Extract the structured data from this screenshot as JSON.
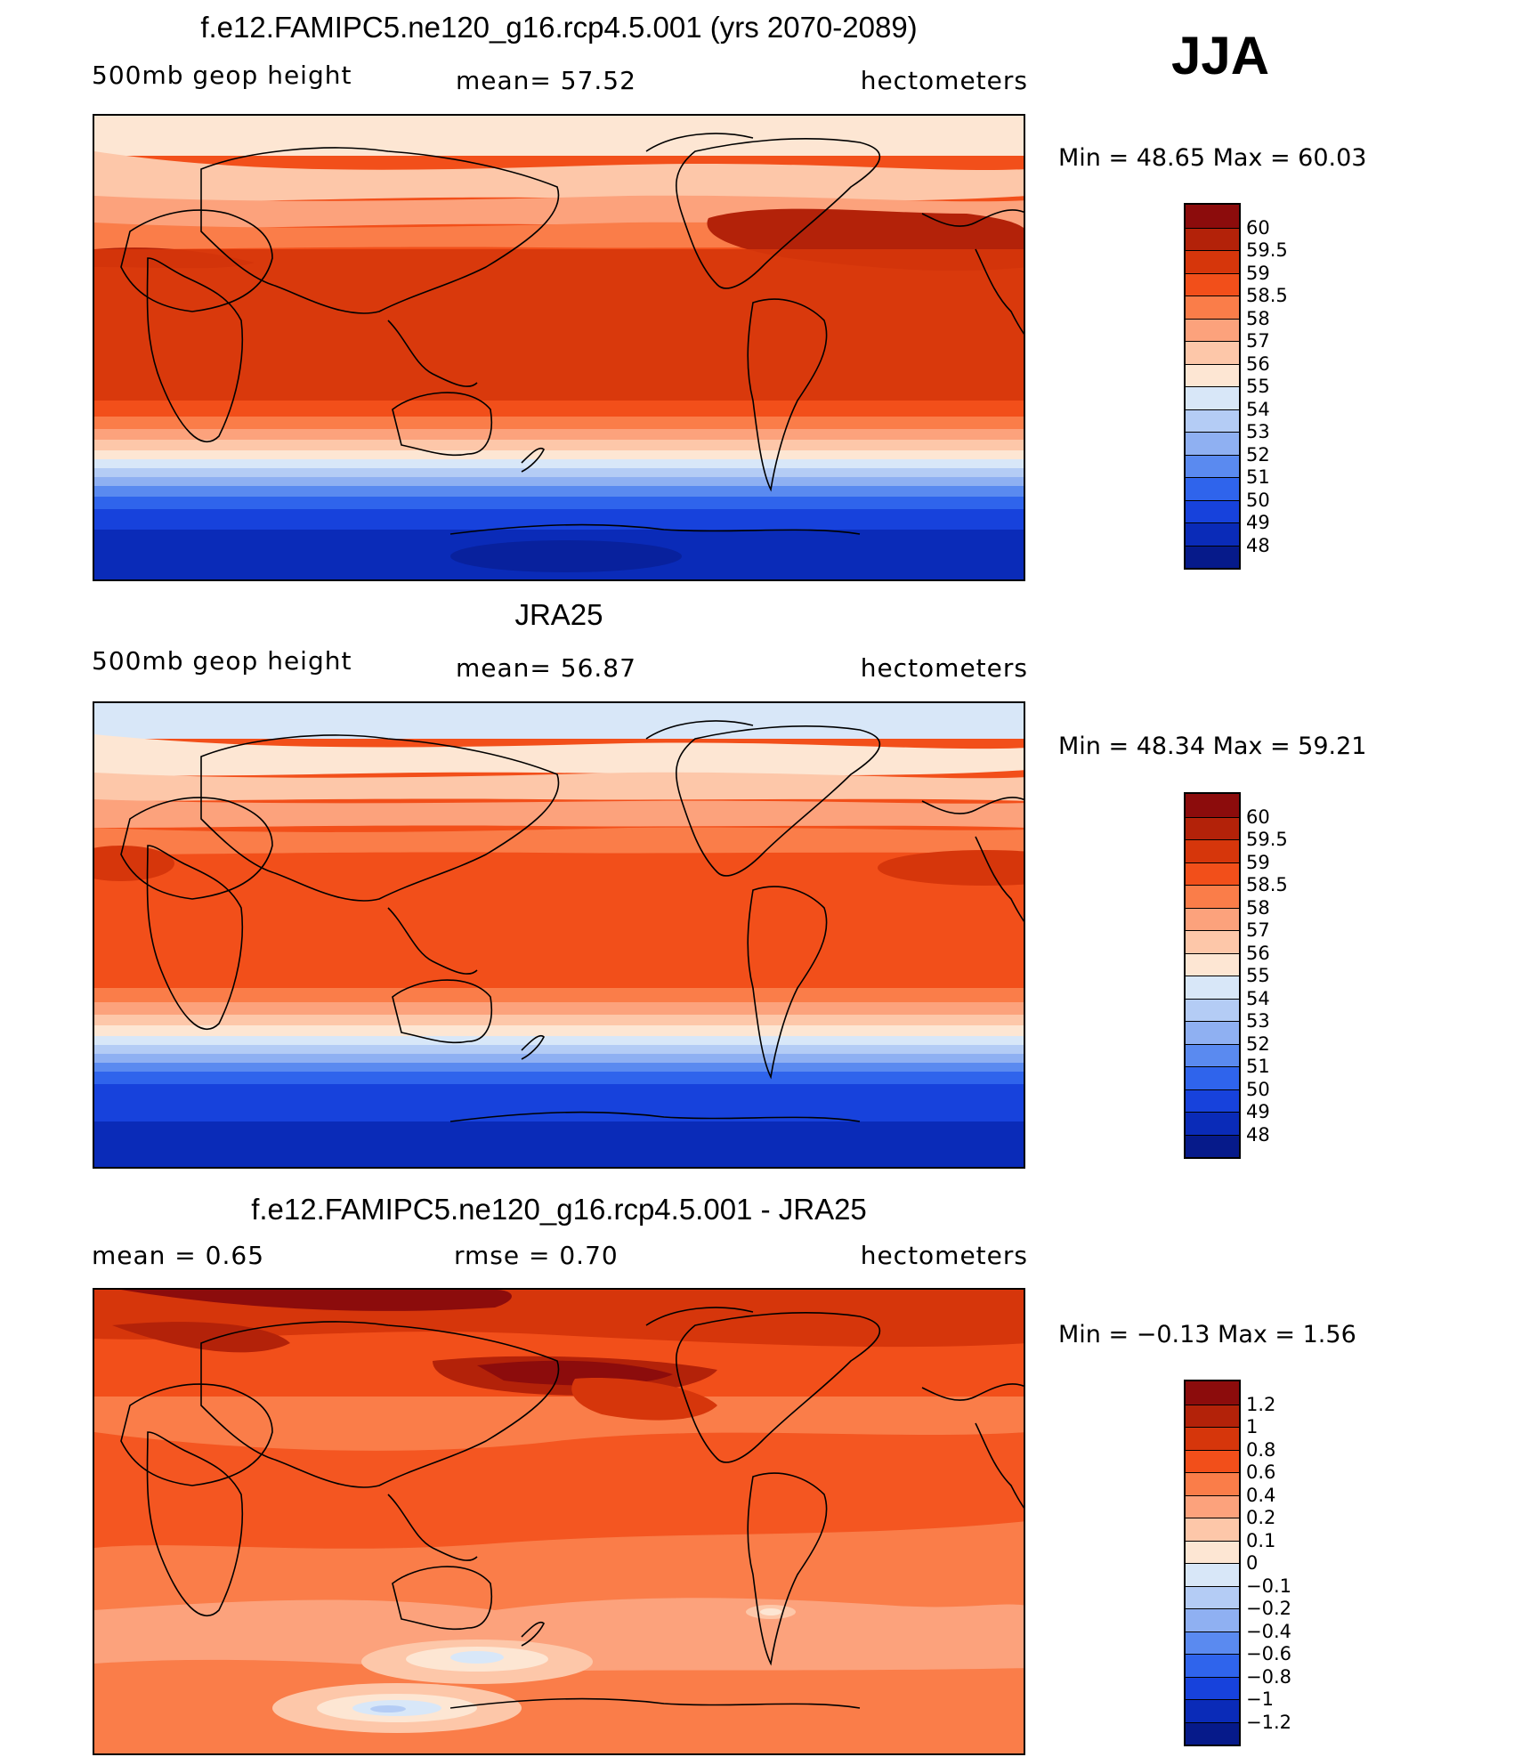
{
  "season": "JJA",
  "panels": [
    {
      "title": "f.e12.FAMIPC5.ne120_g16.rcp4.5.001 (yrs 2070-2089)",
      "left_label": "500mb  geop  height",
      "center_label": "mean=   57.52",
      "units": "hectometers",
      "min_max_label": "Min  =    48.65  Max  =    60.03",
      "colorbar_labels": [
        "60",
        "59.5",
        "59",
        "58.5",
        "58",
        "57",
        "56",
        "55",
        "54",
        "53",
        "52",
        "51",
        "50",
        "49",
        "48"
      ],
      "colorbar_colors": [
        "#8c0c0c",
        "#b32209",
        "#d6360b",
        "#f24f1a",
        "#fa7d49",
        "#fca27c",
        "#fdc7a9",
        "#fde6d3",
        "#d8e7f8",
        "#b4ccf5",
        "#8fb0f2",
        "#5a8af0",
        "#2f64ec",
        "#1742dc",
        "#0a2bb8",
        "#061a8a"
      ]
    },
    {
      "title": "JRA25",
      "left_label": "500mb  geop  height",
      "center_label": "mean=   56.87",
      "units": "hectometers",
      "min_max_label": "Min  =    48.34  Max  =    59.21",
      "colorbar_labels": [
        "60",
        "59.5",
        "59",
        "58.5",
        "58",
        "57",
        "56",
        "55",
        "54",
        "53",
        "52",
        "51",
        "50",
        "49",
        "48"
      ],
      "colorbar_colors": [
        "#8c0c0c",
        "#b32209",
        "#d6360b",
        "#f24f1a",
        "#fa7d49",
        "#fca27c",
        "#fdc7a9",
        "#fde6d3",
        "#d8e7f8",
        "#b4ccf5",
        "#8fb0f2",
        "#5a8af0",
        "#2f64ec",
        "#1742dc",
        "#0a2bb8",
        "#061a8a"
      ]
    },
    {
      "title": "f.e12.FAMIPC5.ne120_g16.rcp4.5.001 - JRA25",
      "left_label": "mean  =      0.65",
      "center_label": "rmse  =      0.70",
      "units": "hectometers",
      "min_max_label": "Min  =    −0.13  Max  =      1.56",
      "colorbar_labels": [
        "1.2",
        "1",
        "0.8",
        "0.6",
        "0.4",
        "0.2",
        "0.1",
        "0",
        "−0.1",
        "−0.2",
        "−0.4",
        "−0.6",
        "−0.8",
        "−1",
        "−1.2"
      ],
      "colorbar_colors": [
        "#8c0c0c",
        "#b32209",
        "#d6360b",
        "#f24f1a",
        "#fa7d49",
        "#fca27c",
        "#fdc7a9",
        "#fde6d3",
        "#d8e7f8",
        "#b4ccf5",
        "#8fb0f2",
        "#5a8af0",
        "#2f64ec",
        "#1742dc",
        "#0a2bb8",
        "#061a8a"
      ]
    }
  ]
}
